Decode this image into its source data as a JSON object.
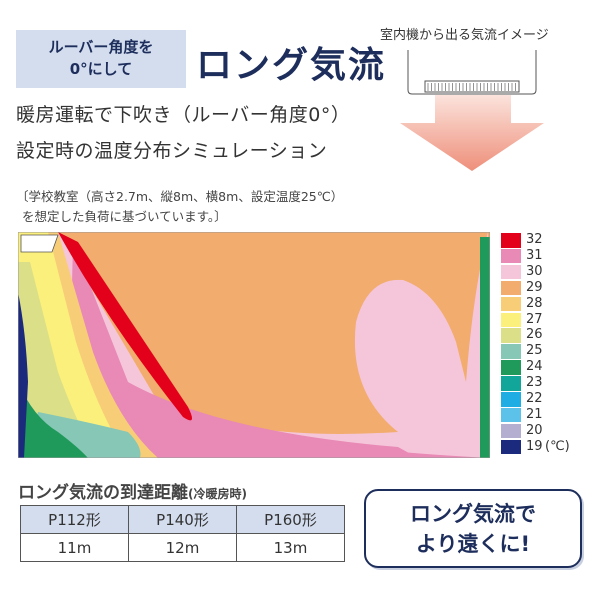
{
  "tag": {
    "line1": "ルーバー角度を",
    "line2": "0°にして"
  },
  "title": "ロング気流",
  "subtitle": {
    "line1": "暖房運転で下吹き（ルーバー角度0°）",
    "line2": "設定時の温度分布シミュレーション"
  },
  "note": {
    "line1": "〔学校教室（高さ2.7m、縦8m、横8m、設定温度25℃）",
    "line2": "を想定した負荷に基づいています。〕"
  },
  "airflow_image_label": "室内機から出る気流イメージ",
  "legend": [
    {
      "value": "32",
      "color": "#e2001a"
    },
    {
      "value": "31",
      "color": "#e989b5"
    },
    {
      "value": "30",
      "color": "#f5c6da"
    },
    {
      "value": "29",
      "color": "#f2ac6d"
    },
    {
      "value": "28",
      "color": "#f8cd78"
    },
    {
      "value": "27",
      "color": "#fcf07c"
    },
    {
      "value": "26",
      "color": "#dadf88"
    },
    {
      "value": "25",
      "color": "#86c7b6"
    },
    {
      "value": "24",
      "color": "#1f9a5b"
    },
    {
      "value": "23",
      "color": "#12a69a"
    },
    {
      "value": "22",
      "color": "#20ade3"
    },
    {
      "value": "21",
      "color": "#5cc2ea"
    },
    {
      "value": "20",
      "color": "#b4aed1"
    },
    {
      "value": "19",
      "color": "#1b2a7d"
    }
  ],
  "legend_unit": "(℃)",
  "distance": {
    "heading": "ロング気流の到達距離",
    "heading_note": "(冷暖房時)",
    "headers": [
      "P112形",
      "P140形",
      "P160形"
    ],
    "values": [
      "11m",
      "12m",
      "13m"
    ]
  },
  "cta": {
    "line1": "ロング気流で",
    "line2": "より遠くに!"
  }
}
